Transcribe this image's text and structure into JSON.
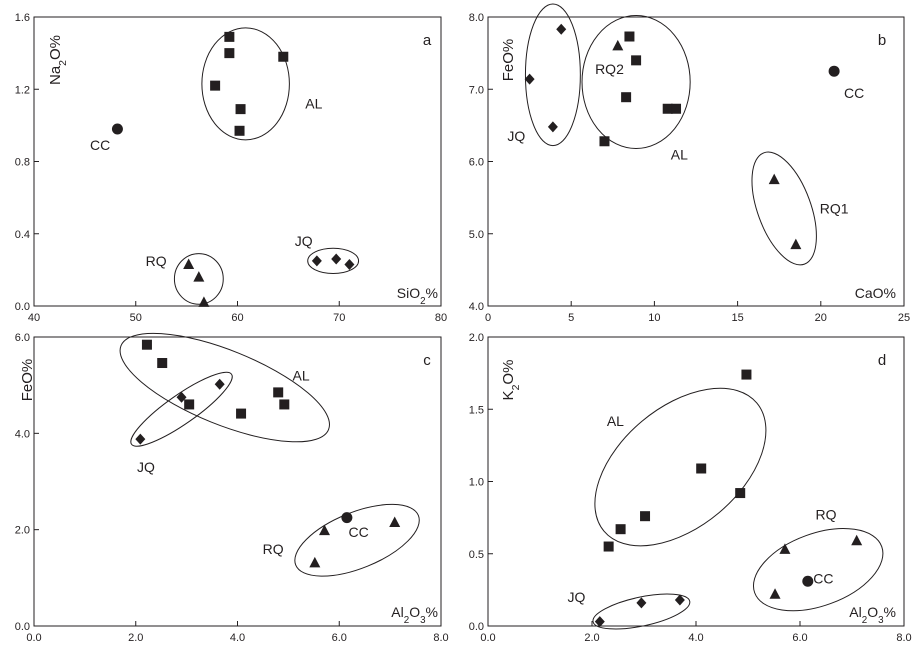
{
  "chart_data": [
    {
      "id": "a",
      "type": "scatter",
      "panel_label": "a",
      "xlabel_parts": [
        {
          "t": "SiO"
        },
        {
          "t": "2",
          "sub": true
        },
        {
          "t": "%"
        }
      ],
      "ylabel_parts": [
        {
          "t": "Na"
        },
        {
          "t": "2",
          "sub": true
        },
        {
          "t": "O%"
        }
      ],
      "xlim": [
        40,
        80
      ],
      "ylim": [
        0,
        1.6
      ],
      "xticks": [
        "40",
        "50",
        "60",
        "70",
        "80"
      ],
      "yticks": [
        "0.0",
        "0.4",
        "0.8",
        "1.2",
        "1.6"
      ],
      "series": [
        {
          "name": "AL",
          "marker": "square",
          "points": [
            [
              59.2,
              1.49
            ],
            [
              59.2,
              1.4
            ],
            [
              64.5,
              1.38
            ],
            [
              57.8,
              1.22
            ],
            [
              60.3,
              1.09
            ],
            [
              60.2,
              0.97
            ]
          ]
        },
        {
          "name": "CC",
          "marker": "circle",
          "points": [
            [
              48.2,
              0.98
            ]
          ]
        },
        {
          "name": "RQ",
          "marker": "triangle",
          "points": [
            [
              55.2,
              0.23
            ],
            [
              56.2,
              0.16
            ],
            [
              56.7,
              0.02
            ]
          ]
        },
        {
          "name": "JQ",
          "marker": "diamond",
          "points": [
            [
              67.8,
              0.25
            ],
            [
              69.7,
              0.26
            ],
            [
              71,
              0.23
            ]
          ]
        }
      ],
      "groups": [
        {
          "label": "AL",
          "cx": 60.8,
          "cy": 1.23,
          "rx": 4.3,
          "ry": 0.31,
          "angle": 0,
          "label_at": [
            67.5,
            1.12
          ]
        },
        {
          "label": "RQ",
          "cx": 56.2,
          "cy": 0.15,
          "rx": 2.4,
          "ry": 0.14,
          "angle": 0,
          "label_at": [
            52,
            0.25
          ]
        },
        {
          "label": "JQ",
          "cx": 69.4,
          "cy": 0.25,
          "rx": 2.5,
          "ry": 0.07,
          "angle": 0,
          "label_at": [
            66.5,
            0.36
          ]
        }
      ],
      "annotations": [
        {
          "text": "CC",
          "at": [
            46.5,
            0.89
          ]
        }
      ]
    },
    {
      "id": "b",
      "type": "scatter",
      "panel_label": "b",
      "xlabel_parts": [
        {
          "t": "CaO%"
        }
      ],
      "ylabel_parts": [
        {
          "t": "FeO%"
        }
      ],
      "xlim": [
        0,
        25
      ],
      "ylim": [
        4,
        8
      ],
      "xticks": [
        "0",
        "5",
        "10",
        "15",
        "20",
        "25"
      ],
      "yticks": [
        "4.0",
        "5.0",
        "6.0",
        "7.0",
        "8.0"
      ],
      "series": [
        {
          "name": "JQ",
          "marker": "diamond",
          "points": [
            [
              4.4,
              7.83
            ],
            [
              2.5,
              7.14
            ],
            [
              3.9,
              6.48
            ]
          ]
        },
        {
          "name": "RQ2",
          "marker": "triangle",
          "points": [
            [
              7.8,
              7.6
            ]
          ]
        },
        {
          "name": "AL",
          "marker": "square",
          "points": [
            [
              8.5,
              7.73
            ],
            [
              8.9,
              7.4
            ],
            [
              8.3,
              6.89
            ],
            [
              10.8,
              6.73
            ],
            [
              11.3,
              6.73
            ],
            [
              7,
              6.28
            ]
          ]
        },
        {
          "name": "CC",
          "marker": "circle",
          "points": [
            [
              20.8,
              7.25
            ]
          ]
        },
        {
          "name": "RQ1",
          "marker": "triangle",
          "points": [
            [
              17.2,
              5.75
            ],
            [
              18.5,
              4.85
            ]
          ]
        }
      ],
      "groups": [
        {
          "label": "JQ",
          "cx": 3.9,
          "cy": 7.2,
          "rx": 1.65,
          "ry": 0.98,
          "angle": 0,
          "label_at": [
            1.7,
            6.35
          ]
        },
        {
          "label": "AL",
          "cx": 8.9,
          "cy": 7.1,
          "rx": 3.25,
          "ry": 0.92,
          "angle": 0,
          "label_at": [
            11.5,
            6.1
          ]
        },
        {
          "label": "RQ1",
          "cx": 17.8,
          "cy": 5.35,
          "rx": 1.6,
          "ry": 0.82,
          "angle": -20,
          "label_at": [
            20.8,
            5.35
          ]
        }
      ],
      "annotations": [
        {
          "text": "RQ2",
          "at": [
            7.3,
            7.28
          ]
        },
        {
          "text": "CC",
          "at": [
            22,
            6.95
          ]
        }
      ]
    },
    {
      "id": "c",
      "type": "scatter",
      "panel_label": "c",
      "xlabel_parts": [
        {
          "t": "Al"
        },
        {
          "t": "2",
          "sub": true
        },
        {
          "t": "O"
        },
        {
          "t": "3",
          "sub": true
        },
        {
          "t": "%"
        }
      ],
      "ylabel_parts": [
        {
          "t": "FeO%"
        }
      ],
      "xlim": [
        0,
        8
      ],
      "ylim": [
        0,
        6
      ],
      "xticks": [
        "0.0",
        "2.0",
        "4.0",
        "6.0",
        "8.0"
      ],
      "yticks": [
        "0.0",
        "2.0",
        "4.0",
        "6.0"
      ],
      "series": [
        {
          "name": "AL",
          "marker": "square",
          "points": [
            [
              2.22,
              5.84
            ],
            [
              2.52,
              5.46
            ],
            [
              4.8,
              4.85
            ],
            [
              4.92,
              4.6
            ],
            [
              3.05,
              4.6
            ],
            [
              4.07,
              4.41
            ]
          ]
        },
        {
          "name": "JQ",
          "marker": "diamond",
          "points": [
            [
              2.09,
              3.88
            ],
            [
              2.9,
              4.75
            ],
            [
              3.65,
              5.02
            ]
          ]
        },
        {
          "name": "RQ",
          "marker": "triangle",
          "points": [
            [
              5.71,
              1.98
            ],
            [
              7.09,
              2.15
            ],
            [
              5.52,
              1.31
            ]
          ]
        },
        {
          "name": "CC",
          "marker": "circle",
          "points": [
            [
              6.15,
              2.25
            ]
          ]
        }
      ],
      "groups": [
        {
          "label": "AL",
          "cx": 3.75,
          "cy": 4.95,
          "rx": 2.2,
          "ry": 0.77,
          "angle": 22,
          "label_at": [
            5.25,
            5.2
          ]
        },
        {
          "label": "JQ",
          "cx": 2.9,
          "cy": 4.5,
          "rx": 1.2,
          "ry": 0.3,
          "angle": -35,
          "label_at": [
            2.2,
            3.3
          ]
        },
        {
          "label": "RQ",
          "cx": 6.35,
          "cy": 1.78,
          "rx": 1.3,
          "ry": 0.58,
          "angle": -22,
          "label_at": [
            4.7,
            1.6
          ]
        }
      ],
      "annotations": [
        {
          "text": "CC",
          "at": [
            6.38,
            1.95
          ]
        }
      ]
    },
    {
      "id": "d",
      "type": "scatter",
      "panel_label": "d",
      "xlabel_parts": [
        {
          "t": "Al"
        },
        {
          "t": "2",
          "sub": true
        },
        {
          "t": "O"
        },
        {
          "t": "3",
          "sub": true
        },
        {
          "t": "%"
        }
      ],
      "ylabel_parts": [
        {
          "t": "K"
        },
        {
          "t": "2",
          "sub": true
        },
        {
          "t": "O%"
        }
      ],
      "xlim": [
        0,
        8
      ],
      "ylim": [
        0,
        2
      ],
      "xticks": [
        "0.0",
        "2.0",
        "4.0",
        "6.0",
        "8.0"
      ],
      "yticks": [
        "0.0",
        "0.5",
        "1.0",
        "1.5",
        "2.0"
      ],
      "series": [
        {
          "name": "AL",
          "marker": "square",
          "points": [
            [
              4.97,
              1.74
            ],
            [
              4.1,
              1.09
            ],
            [
              4.85,
              0.92
            ],
            [
              3.02,
              0.76
            ],
            [
              2.55,
              0.67
            ],
            [
              2.32,
              0.55
            ]
          ]
        },
        {
          "name": "RQ",
          "marker": "triangle",
          "points": [
            [
              7.09,
              0.59
            ],
            [
              5.71,
              0.53
            ],
            [
              5.52,
              0.22
            ]
          ]
        },
        {
          "name": "CC",
          "marker": "circle",
          "points": [
            [
              6.15,
              0.31
            ]
          ]
        },
        {
          "name": "JQ",
          "marker": "diamond",
          "points": [
            [
              2.15,
              0.03
            ],
            [
              2.95,
              0.16
            ],
            [
              3.69,
              0.18
            ]
          ]
        }
      ],
      "groups": [
        {
          "label": "AL",
          "cx": 3.7,
          "cy": 1.1,
          "rx": 1.15,
          "ry": 0.69,
          "angle": 50,
          "label_at": [
            2.45,
            1.42
          ]
        },
        {
          "label": "RQ",
          "cx": 6.35,
          "cy": 0.39,
          "rx": 1.3,
          "ry": 0.25,
          "angle": -20,
          "label_at": [
            6.5,
            0.77
          ]
        },
        {
          "label": "JQ",
          "cx": 2.95,
          "cy": 0.1,
          "rx": 0.95,
          "ry": 0.1,
          "angle": -12,
          "label_at": [
            1.7,
            0.2
          ]
        }
      ],
      "annotations": [
        {
          "text": "CC",
          "at": [
            6.45,
            0.33
          ]
        }
      ]
    }
  ]
}
